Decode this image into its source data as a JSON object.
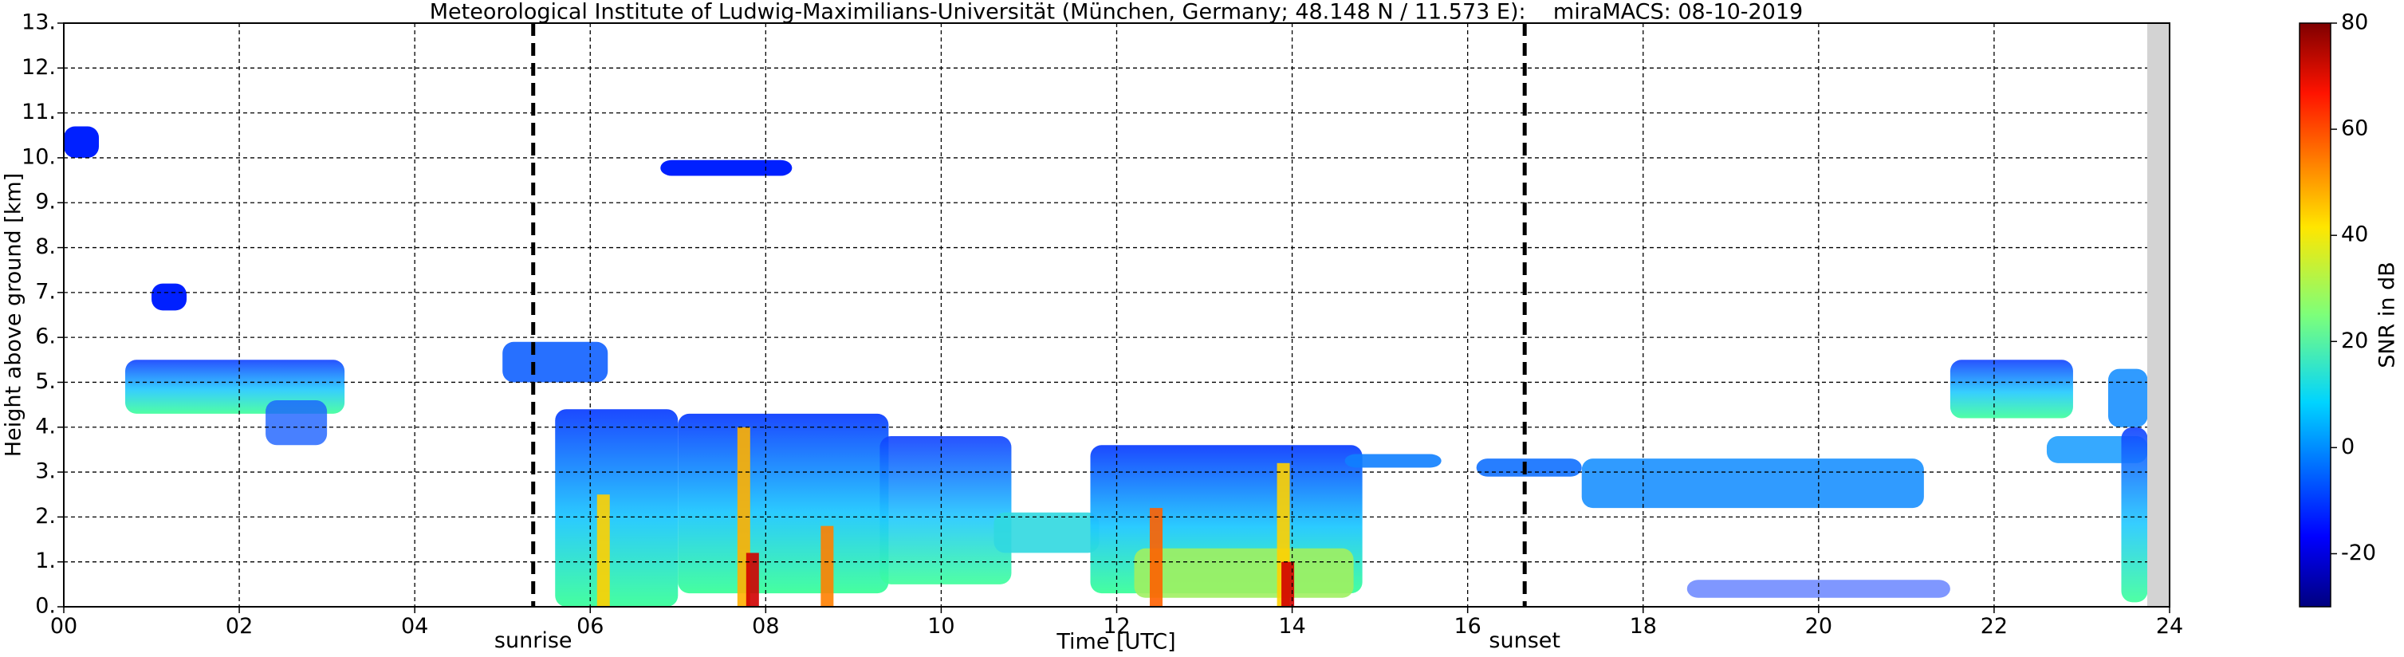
{
  "chart_data": {
    "type": "heatmap",
    "title": "Meteorological Institute of Ludwig-Maximilians-Universität (München, Germany; 48.148 N / 11.573 E):    miraMACS: 08-10-2019",
    "x_label": "Time [UTC]",
    "y_label": "Height above ground [km]",
    "xlim": [
      0,
      24
    ],
    "ylim": [
      0,
      13
    ],
    "xticks": [
      {
        "value": 0,
        "label": "00"
      },
      {
        "value": 2,
        "label": "02"
      },
      {
        "value": 4,
        "label": "04"
      },
      {
        "value": 6,
        "label": "06"
      },
      {
        "value": 8,
        "label": "08"
      },
      10,
      12,
      14,
      16,
      18,
      20,
      22,
      24
    ],
    "yticks": [
      {
        "value": 0,
        "label": "0."
      },
      {
        "value": 1,
        "label": "1."
      },
      {
        "value": 2,
        "label": "2."
      },
      {
        "value": 3,
        "label": "3."
      },
      {
        "value": 4,
        "label": "4."
      },
      {
        "value": 5,
        "label": "5."
      },
      {
        "value": 6,
        "label": "6."
      },
      {
        "value": 7,
        "label": "7."
      },
      {
        "value": 8,
        "label": "8."
      },
      {
        "value": 9,
        "label": "9."
      },
      {
        "value": 10,
        "label": "10."
      },
      {
        "value": 11,
        "label": "11."
      },
      {
        "value": 12,
        "label": "12."
      },
      {
        "value": 13,
        "label": "13."
      }
    ],
    "grid": true,
    "colorbar": {
      "label": "SNR in dB",
      "lim": [
        -30,
        80
      ],
      "ticks": [
        -20,
        0,
        20,
        40,
        60,
        80
      ]
    },
    "annotations": [
      {
        "text": "sunrise",
        "x": 5.35
      },
      {
        "text": "sunset",
        "x": 16.65
      }
    ]
  }
}
